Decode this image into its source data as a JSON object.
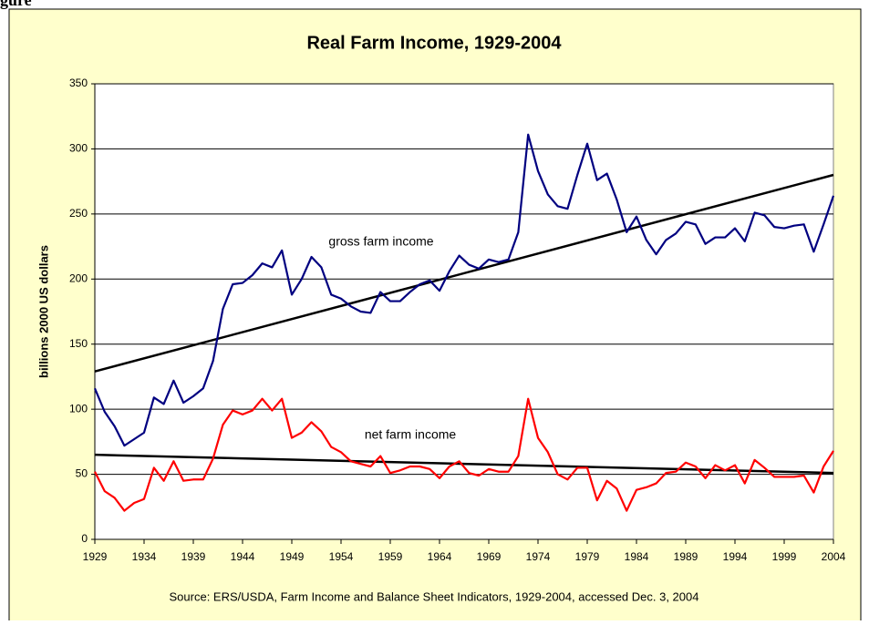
{
  "header": {
    "text": "gure"
  },
  "chart_data": {
    "type": "line",
    "title": "Real Farm Income, 1929-2004",
    "y_label": "billions 2000 US dollars",
    "source": "Source:  ERS/USDA, Farm Income and Balance Sheet Indicators, 1929-2004, accessed Dec. 3, 2004",
    "x": [
      1929,
      1930,
      1931,
      1932,
      1933,
      1934,
      1935,
      1936,
      1937,
      1938,
      1939,
      1940,
      1941,
      1942,
      1943,
      1944,
      1945,
      1946,
      1947,
      1948,
      1949,
      1950,
      1951,
      1952,
      1953,
      1954,
      1955,
      1956,
      1957,
      1958,
      1959,
      1960,
      1961,
      1962,
      1963,
      1964,
      1965,
      1966,
      1967,
      1968,
      1969,
      1970,
      1971,
      1972,
      1973,
      1974,
      1975,
      1976,
      1977,
      1978,
      1979,
      1980,
      1981,
      1982,
      1983,
      1984,
      1985,
      1986,
      1987,
      1988,
      1989,
      1990,
      1991,
      1992,
      1993,
      1994,
      1995,
      1996,
      1997,
      1998,
      1999,
      2000,
      2001,
      2002,
      2003,
      2004
    ],
    "series": [
      {
        "name": "gross farm income",
        "color": "#000080",
        "values": [
          116,
          98,
          87,
          72,
          77,
          82,
          109,
          104,
          122,
          105,
          110,
          116,
          137,
          177,
          196,
          197,
          203,
          212,
          209,
          222,
          188,
          200,
          217,
          209,
          188,
          185,
          179,
          175,
          174,
          190,
          183,
          183,
          190,
          196,
          199,
          191,
          206,
          218,
          211,
          208,
          215,
          213,
          215,
          236,
          311,
          283,
          265,
          256,
          254,
          280,
          304,
          276,
          281,
          261,
          236,
          248,
          230,
          219,
          230,
          235,
          244,
          242,
          227,
          232,
          232,
          239,
          229,
          251,
          249,
          240,
          239,
          241,
          242,
          221,
          242,
          264
        ]
      },
      {
        "name": "net farm income",
        "color": "#ff0000",
        "values": [
          52,
          37,
          32,
          22,
          28,
          31,
          55,
          45,
          60,
          45,
          46,
          46,
          62,
          88,
          99,
          96,
          99,
          108,
          99,
          108,
          78,
          82,
          90,
          83,
          71,
          67,
          60,
          58,
          56,
          64,
          51,
          53,
          56,
          56,
          54,
          47,
          56,
          60,
          51,
          49,
          54,
          52,
          52,
          64,
          108,
          78,
          67,
          50,
          46,
          55,
          55,
          30,
          45,
          39,
          22,
          38,
          40,
          43,
          51,
          52,
          59,
          56,
          47,
          57,
          53,
          57,
          43,
          61,
          55,
          48,
          48,
          48,
          49,
          36,
          56,
          68
        ]
      }
    ],
    "trend_lines": [
      {
        "color": "#000000",
        "x": [
          1929,
          2004
        ],
        "values": [
          129,
          280
        ]
      },
      {
        "color": "#000000",
        "x": [
          1929,
          2004
        ],
        "values": [
          65,
          51
        ]
      }
    ],
    "xlim": [
      1929,
      2004
    ],
    "xticks": [
      1929,
      1934,
      1939,
      1944,
      1949,
      1954,
      1959,
      1964,
      1969,
      1974,
      1979,
      1984,
      1989,
      1994,
      1999,
      2004
    ],
    "ylim": [
      0,
      350
    ],
    "yticks": [
      0,
      50,
      100,
      150,
      200,
      250,
      300,
      350
    ],
    "grid": true
  }
}
